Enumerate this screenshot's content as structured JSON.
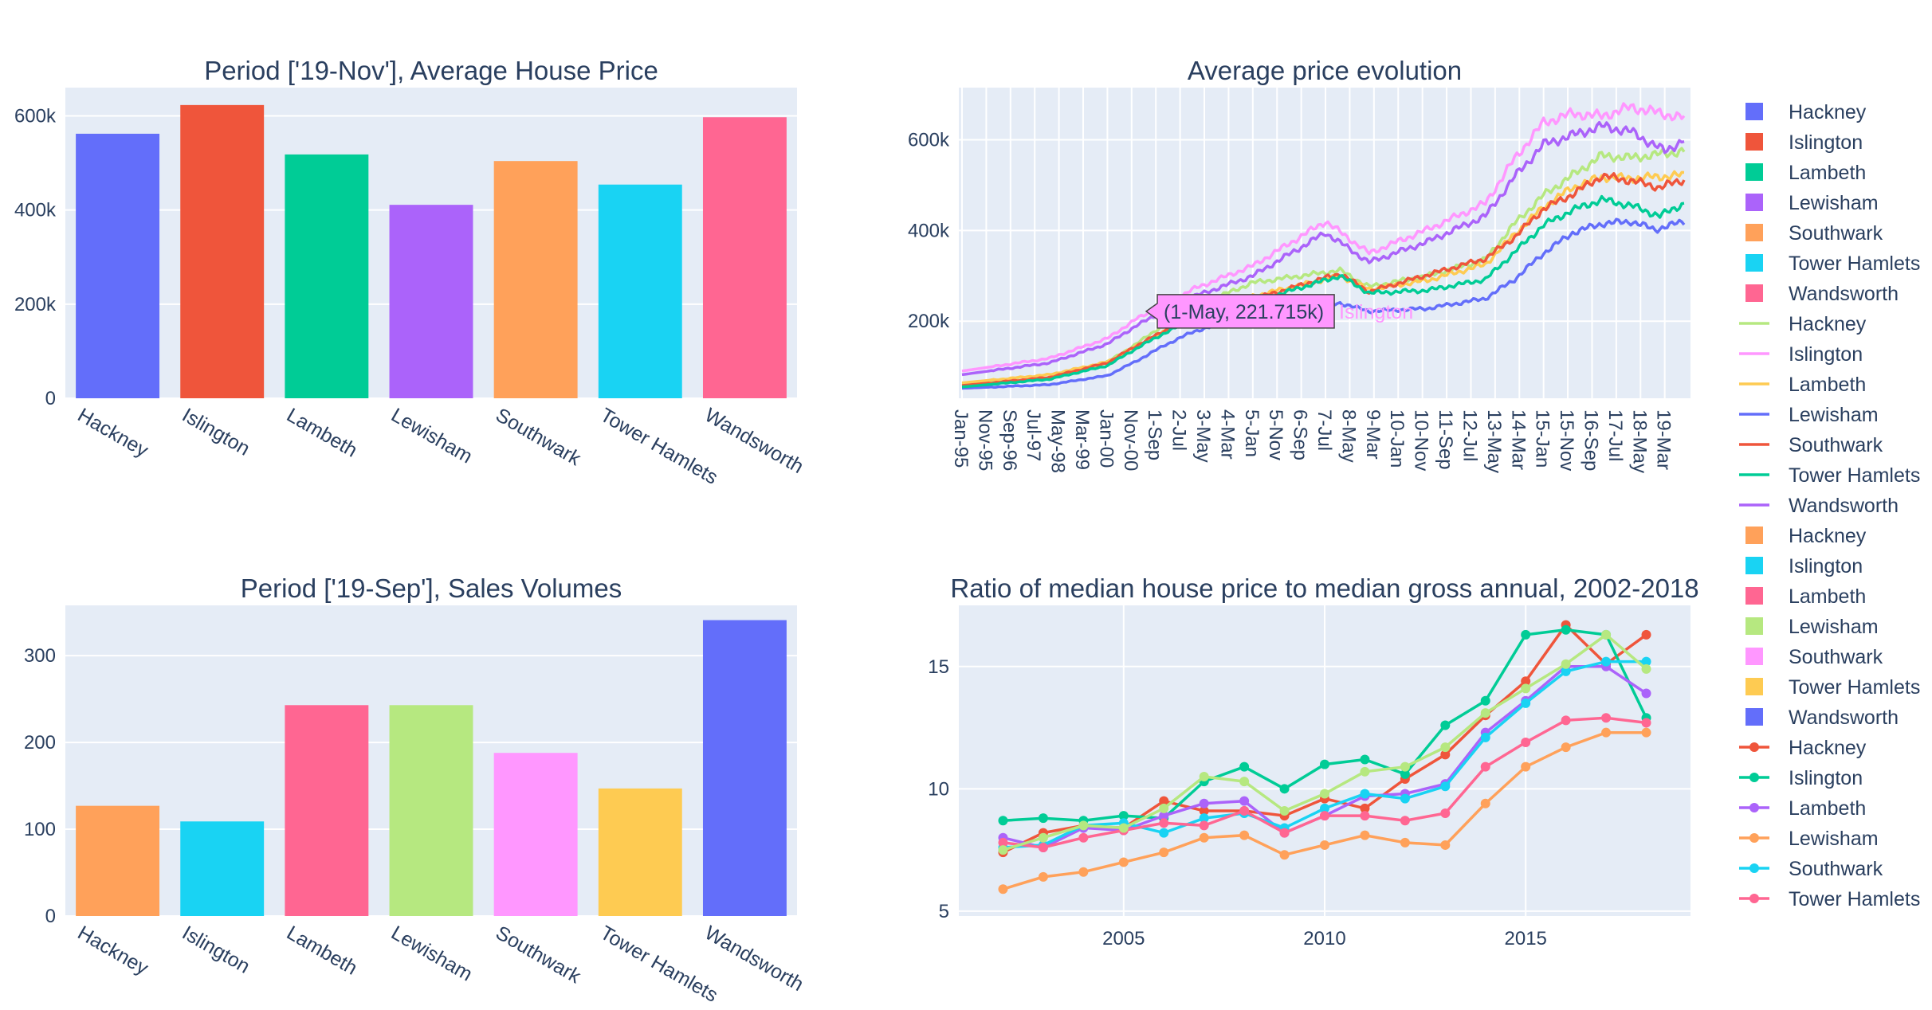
{
  "chart_data": [
    {
      "id": "avg-price-bar",
      "type": "bar",
      "title": "Period ['19-Nov'], Average House Price",
      "categories": [
        "Hackney",
        "Islington",
        "Lambeth",
        "Lewisham",
        "Southwark",
        "Tower Hamlets",
        "Wandsworth"
      ],
      "values": [
        562000,
        623000,
        518000,
        411000,
        504000,
        454000,
        597000
      ],
      "colors": [
        "#636efa",
        "#ef553b",
        "#00cc96",
        "#ab63fa",
        "#ffa15a",
        "#19d3f3",
        "#ff6692"
      ],
      "ylim": [
        0,
        660000
      ],
      "yticks": [
        0,
        200000,
        400000,
        600000
      ],
      "yticklabels": [
        "0",
        "200k",
        "400k",
        "600k"
      ]
    },
    {
      "id": "sales-volume-bar",
      "type": "bar",
      "title": "Period ['19-Sep'], Sales Volumes",
      "categories": [
        "Hackney",
        "Islington",
        "Lambeth",
        "Lewisham",
        "Southwark",
        "Tower Hamlets",
        "Wandsworth"
      ],
      "values": [
        127,
        109,
        243,
        243,
        188,
        147,
        341
      ],
      "colors": [
        "#ffa15a",
        "#19d3f3",
        "#ff6692",
        "#b6e880",
        "#ff97ff",
        "#fecb52",
        "#636efa"
      ],
      "ylim": [
        0,
        358
      ],
      "yticks": [
        0,
        100,
        200,
        300
      ],
      "yticklabels": [
        "0",
        "100",
        "200",
        "300"
      ]
    },
    {
      "id": "price-evolution",
      "type": "line",
      "title": "Average price evolution",
      "x_start": "Jan-95",
      "x_end": "Nov-19",
      "xticklabels": [
        "Jan-95",
        "Nov-95",
        "Sep-96",
        "Jul-97",
        "May-98",
        "Mar-99",
        "Jan-00",
        "Nov-00",
        "1-Sep",
        "2-Jul",
        "3-May",
        "4-Mar",
        "5-Jan",
        "5-Nov",
        "6-Sep",
        "7-Jul",
        "8-May",
        "9-Mar",
        "10-Jan",
        "10-Nov",
        "11-Sep",
        "12-Jul",
        "13-May",
        "14-Mar",
        "15-Jan",
        "15-Nov",
        "16-Sep",
        "17-Jul",
        "18-May",
        "19-Mar"
      ],
      "ylim": [
        30000,
        715000
      ],
      "yticks": [
        200000,
        400000,
        600000
      ],
      "yticklabels": [
        "200k",
        "400k",
        "600k"
      ],
      "series": [
        {
          "name": "Hackney",
          "color": "#b6e880",
          "anchors": [
            [
              0,
              62000
            ],
            [
              36,
              74000
            ],
            [
              60,
              110000
            ],
            [
              72,
              150000
            ],
            [
              84,
              195000
            ],
            [
              96,
              232000
            ],
            [
              120,
              285000
            ],
            [
              156,
              312000
            ],
            [
              168,
              276000
            ],
            [
              192,
              300000
            ],
            [
              216,
              336000
            ],
            [
              228,
              415000
            ],
            [
              240,
              478000
            ],
            [
              252,
              522000
            ],
            [
              264,
              565000
            ],
            [
              276,
              560000
            ],
            [
              298,
              575000
            ]
          ]
        },
        {
          "name": "Islington",
          "color": "#ff97ff",
          "anchors": [
            [
              0,
              90000
            ],
            [
              36,
              118000
            ],
            [
              60,
              162000
            ],
            [
              72,
              205000
            ],
            [
              84,
              238000
            ],
            [
              96,
              272000
            ],
            [
              120,
              322000
            ],
            [
              150,
              420000
            ],
            [
              168,
              350000
            ],
            [
              192,
              402000
            ],
            [
              216,
              460000
            ],
            [
              228,
              558000
            ],
            [
              240,
              638000
            ],
            [
              252,
              658000
            ],
            [
              264,
              652000
            ],
            [
              276,
              672000
            ],
            [
              298,
              648000
            ]
          ]
        },
        {
          "name": "Lambeth",
          "color": "#fecb52",
          "anchors": [
            [
              0,
              64000
            ],
            [
              36,
              82000
            ],
            [
              60,
              110000
            ],
            [
              72,
              145000
            ],
            [
              84,
              178000
            ],
            [
              96,
              208000
            ],
            [
              120,
              255000
            ],
            [
              156,
              300000
            ],
            [
              168,
              270000
            ],
            [
              192,
              290000
            ],
            [
              216,
              325000
            ],
            [
              228,
              392000
            ],
            [
              240,
              452000
            ],
            [
              252,
              495000
            ],
            [
              264,
              518000
            ],
            [
              276,
              515000
            ],
            [
              298,
              522000
            ]
          ]
        },
        {
          "name": "Lewisham",
          "color": "#636efa",
          "anchors": [
            [
              0,
              52000
            ],
            [
              36,
              60000
            ],
            [
              60,
              80000
            ],
            [
              72,
              112000
            ],
            [
              84,
              148000
            ],
            [
              96,
              178000
            ],
            [
              120,
              212000
            ],
            [
              156,
              240000
            ],
            [
              168,
              222000
            ],
            [
              192,
              228000
            ],
            [
              216,
              250000
            ],
            [
              228,
              292000
            ],
            [
              240,
              350000
            ],
            [
              252,
              395000
            ],
            [
              264,
              415000
            ],
            [
              276,
              420000
            ],
            [
              286,
              402000
            ],
            [
              298,
              420000
            ]
          ]
        },
        {
          "name": "Southwark",
          "color": "#ef553b",
          "anchors": [
            [
              0,
              58000
            ],
            [
              36,
              76000
            ],
            [
              60,
              108000
            ],
            [
              72,
              146000
            ],
            [
              84,
              180000
            ],
            [
              96,
              210000
            ],
            [
              120,
              248000
            ],
            [
              156,
              305000
            ],
            [
              168,
              265000
            ],
            [
              192,
              302000
            ],
            [
              216,
              338000
            ],
            [
              228,
              385000
            ],
            [
              240,
              448000
            ],
            [
              252,
              480000
            ],
            [
              264,
              520000
            ],
            [
              276,
              510000
            ],
            [
              288,
              495000
            ],
            [
              298,
              512000
            ]
          ]
        },
        {
          "name": "Tower Hamlets",
          "color": "#00cc96",
          "anchors": [
            [
              0,
              55000
            ],
            [
              36,
              72000
            ],
            [
              60,
              102000
            ],
            [
              72,
              140000
            ],
            [
              84,
              175000
            ],
            [
              96,
              205000
            ],
            [
              120,
              242000
            ],
            [
              156,
              300000
            ],
            [
              168,
              262000
            ],
            [
              192,
              268000
            ],
            [
              216,
              292000
            ],
            [
              228,
              352000
            ],
            [
              240,
              412000
            ],
            [
              252,
              445000
            ],
            [
              264,
              468000
            ],
            [
              276,
              455000
            ],
            [
              288,
              432000
            ],
            [
              298,
              460000
            ]
          ]
        },
        {
          "name": "Wandsworth",
          "color": "#ab63fa",
          "anchors": [
            [
              0,
              82000
            ],
            [
              36,
              108000
            ],
            [
              60,
              150000
            ],
            [
              72,
              190000
            ],
            [
              84,
              225000
            ],
            [
              96,
              255000
            ],
            [
              120,
              300000
            ],
            [
              150,
              395000
            ],
            [
              168,
              330000
            ],
            [
              192,
              375000
            ],
            [
              216,
              432000
            ],
            [
              228,
              518000
            ],
            [
              240,
              590000
            ],
            [
              252,
              610000
            ],
            [
              264,
              630000
            ],
            [
              276,
              618000
            ],
            [
              290,
              575000
            ],
            [
              298,
              600000
            ]
          ]
        }
      ],
      "annotation": {
        "text": "(1-May, 221.715k)",
        "series": "Islington",
        "x_label": "Islington",
        "x_index": 76,
        "y": 221715
      }
    },
    {
      "id": "ratio-lines",
      "type": "line",
      "title": "Ratio of median house price to median gross annual, 2002-2018",
      "x": [
        2002,
        2003,
        2004,
        2005,
        2006,
        2007,
        2008,
        2009,
        2010,
        2011,
        2012,
        2013,
        2014,
        2015,
        2016,
        2017,
        2018
      ],
      "xlim": [
        2000.9,
        2019.1
      ],
      "xticks": [
        2005,
        2010,
        2015
      ],
      "ylim": [
        4.8,
        17.5
      ],
      "yticks": [
        5,
        10,
        15
      ],
      "series": [
        {
          "name": "Hackney",
          "color": "#ef553b",
          "values": [
            7.4,
            8.2,
            8.5,
            8.4,
            9.5,
            9.1,
            9.1,
            8.9,
            9.6,
            9.2,
            10.4,
            11.4,
            13.0,
            14.4,
            16.7,
            15.1,
            16.3
          ]
        },
        {
          "name": "Islington",
          "color": "#00cc96",
          "values": [
            8.7,
            8.8,
            8.7,
            8.9,
            8.8,
            10.3,
            10.9,
            10.0,
            11.0,
            11.2,
            10.6,
            12.6,
            13.6,
            16.3,
            16.5,
            16.3,
            12.9
          ]
        },
        {
          "name": "Lambeth",
          "color": "#ab63fa",
          "values": [
            8.0,
            7.6,
            8.4,
            8.3,
            8.9,
            9.4,
            9.5,
            8.2,
            8.9,
            9.7,
            9.8,
            10.2,
            12.3,
            13.6,
            15.0,
            15.0,
            13.9
          ]
        },
        {
          "name": "Lewisham",
          "color": "#ffa15a",
          "values": [
            5.9,
            6.4,
            6.6,
            7.0,
            7.4,
            8.0,
            8.1,
            7.3,
            7.7,
            8.1,
            7.8,
            7.7,
            9.4,
            10.9,
            11.7,
            12.3,
            12.3
          ]
        },
        {
          "name": "Southwark",
          "color": "#19d3f3",
          "values": [
            7.6,
            7.7,
            8.5,
            8.6,
            8.2,
            8.8,
            9.0,
            8.4,
            9.2,
            9.8,
            9.6,
            10.1,
            12.1,
            13.5,
            14.8,
            15.2,
            15.2
          ]
        },
        {
          "name": "Tower Hamlets",
          "color": "#ff6692",
          "values": [
            7.8,
            7.6,
            8.0,
            8.3,
            8.6,
            8.5,
            9.1,
            8.2,
            8.9,
            8.9,
            8.7,
            9.0,
            10.9,
            11.9,
            12.8,
            12.9,
            12.7
          ]
        },
        {
          "name": "Wandsworth",
          "color": "#b6e880",
          "values": [
            7.5,
            8.0,
            8.5,
            8.4,
            9.2,
            10.5,
            10.3,
            9.1,
            9.8,
            10.7,
            10.9,
            11.7,
            13.1,
            14.1,
            15.1,
            16.3,
            14.9
          ]
        }
      ]
    }
  ],
  "legend": {
    "items": [
      {
        "label": "Hackney",
        "kind": "square",
        "color": "#636efa"
      },
      {
        "label": "Islington",
        "kind": "square",
        "color": "#ef553b"
      },
      {
        "label": "Lambeth",
        "kind": "square",
        "color": "#00cc96"
      },
      {
        "label": "Lewisham",
        "kind": "square",
        "color": "#ab63fa"
      },
      {
        "label": "Southwark",
        "kind": "square",
        "color": "#ffa15a"
      },
      {
        "label": "Tower Hamlets",
        "kind": "square",
        "color": "#19d3f3"
      },
      {
        "label": "Wandsworth",
        "kind": "square",
        "color": "#ff6692"
      },
      {
        "label": "Hackney",
        "kind": "line",
        "color": "#b6e880"
      },
      {
        "label": "Islington",
        "kind": "line",
        "color": "#ff97ff"
      },
      {
        "label": "Lambeth",
        "kind": "line",
        "color": "#fecb52"
      },
      {
        "label": "Lewisham",
        "kind": "line",
        "color": "#636efa"
      },
      {
        "label": "Southwark",
        "kind": "line",
        "color": "#ef553b"
      },
      {
        "label": "Tower Hamlets",
        "kind": "line",
        "color": "#00cc96"
      },
      {
        "label": "Wandsworth",
        "kind": "line",
        "color": "#ab63fa"
      },
      {
        "label": "Hackney",
        "kind": "square",
        "color": "#ffa15a"
      },
      {
        "label": "Islington",
        "kind": "square",
        "color": "#19d3f3"
      },
      {
        "label": "Lambeth",
        "kind": "square",
        "color": "#ff6692"
      },
      {
        "label": "Lewisham",
        "kind": "square",
        "color": "#b6e880"
      },
      {
        "label": "Southwark",
        "kind": "square",
        "color": "#ff97ff"
      },
      {
        "label": "Tower Hamlets",
        "kind": "square",
        "color": "#fecb52"
      },
      {
        "label": "Wandsworth",
        "kind": "square",
        "color": "#636efa"
      },
      {
        "label": "Hackney",
        "kind": "marker-line",
        "color": "#ef553b"
      },
      {
        "label": "Islington",
        "kind": "marker-line",
        "color": "#00cc96"
      },
      {
        "label": "Lambeth",
        "kind": "marker-line",
        "color": "#ab63fa"
      },
      {
        "label": "Lewisham",
        "kind": "marker-line",
        "color": "#ffa15a"
      },
      {
        "label": "Southwark",
        "kind": "marker-line",
        "color": "#19d3f3"
      },
      {
        "label": "Tower Hamlets",
        "kind": "marker-line",
        "color": "#ff6692"
      }
    ]
  },
  "theme": {
    "plot_bg": "#e5ecf6",
    "grid": "#ffffff",
    "text": "#2a3f5f",
    "hover_bg": "#ff97ff"
  }
}
